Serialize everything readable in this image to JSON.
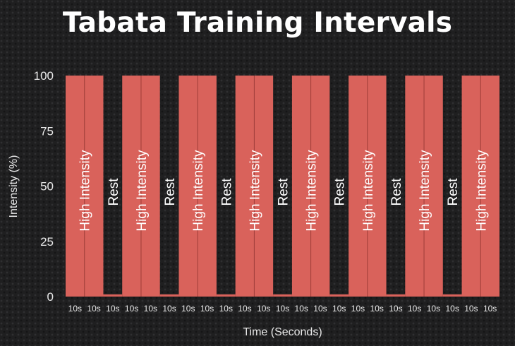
{
  "title": "Tabata Training Intervals",
  "colors": {
    "bar": "#d9625b",
    "bar_divider": "#9e3d38",
    "text": "#e9e9e9"
  },
  "chart_data": {
    "type": "bar",
    "title": "Tabata Training Intervals",
    "xlabel": "Time (Seconds)",
    "ylabel": "Intensity (%)",
    "ylim": [
      0,
      100
    ],
    "yticks": [
      0,
      25,
      50,
      75,
      100
    ],
    "grid": false,
    "legend": "none",
    "categories": [
      "10s",
      "10s",
      "10s",
      "10s",
      "10s",
      "10s",
      "10s",
      "10s",
      "10s",
      "10s",
      "10s",
      "10s",
      "10s",
      "10s",
      "10s",
      "10s",
      "10s",
      "10s",
      "10s",
      "10s",
      "10s",
      "10s",
      "10s"
    ],
    "values": [
      100,
      100,
      1,
      100,
      100,
      1,
      100,
      100,
      1,
      100,
      100,
      1,
      100,
      100,
      1,
      100,
      100,
      1,
      100,
      100,
      1,
      100,
      100
    ],
    "annotations": [
      {
        "text": "High Intensity",
        "category_index": 0,
        "span": 2
      },
      {
        "text": "Rest",
        "category_index": 2,
        "span": 1
      },
      {
        "text": "High Intensity",
        "category_index": 3,
        "span": 2
      },
      {
        "text": "Rest",
        "category_index": 5,
        "span": 1
      },
      {
        "text": "High Intensity",
        "category_index": 6,
        "span": 2
      },
      {
        "text": "Rest",
        "category_index": 8,
        "span": 1
      },
      {
        "text": "High Intensity",
        "category_index": 9,
        "span": 2
      },
      {
        "text": "Rest",
        "category_index": 11,
        "span": 1
      },
      {
        "text": "High Intensity",
        "category_index": 12,
        "span": 2
      },
      {
        "text": "Rest",
        "category_index": 14,
        "span": 1
      },
      {
        "text": "High Intensity",
        "category_index": 15,
        "span": 2
      },
      {
        "text": "Rest",
        "category_index": 17,
        "span": 1
      },
      {
        "text": "High Intensity",
        "category_index": 18,
        "span": 2
      },
      {
        "text": "Rest",
        "category_index": 20,
        "span": 1
      },
      {
        "text": "High Intensity",
        "category_index": 21,
        "span": 2
      }
    ]
  }
}
